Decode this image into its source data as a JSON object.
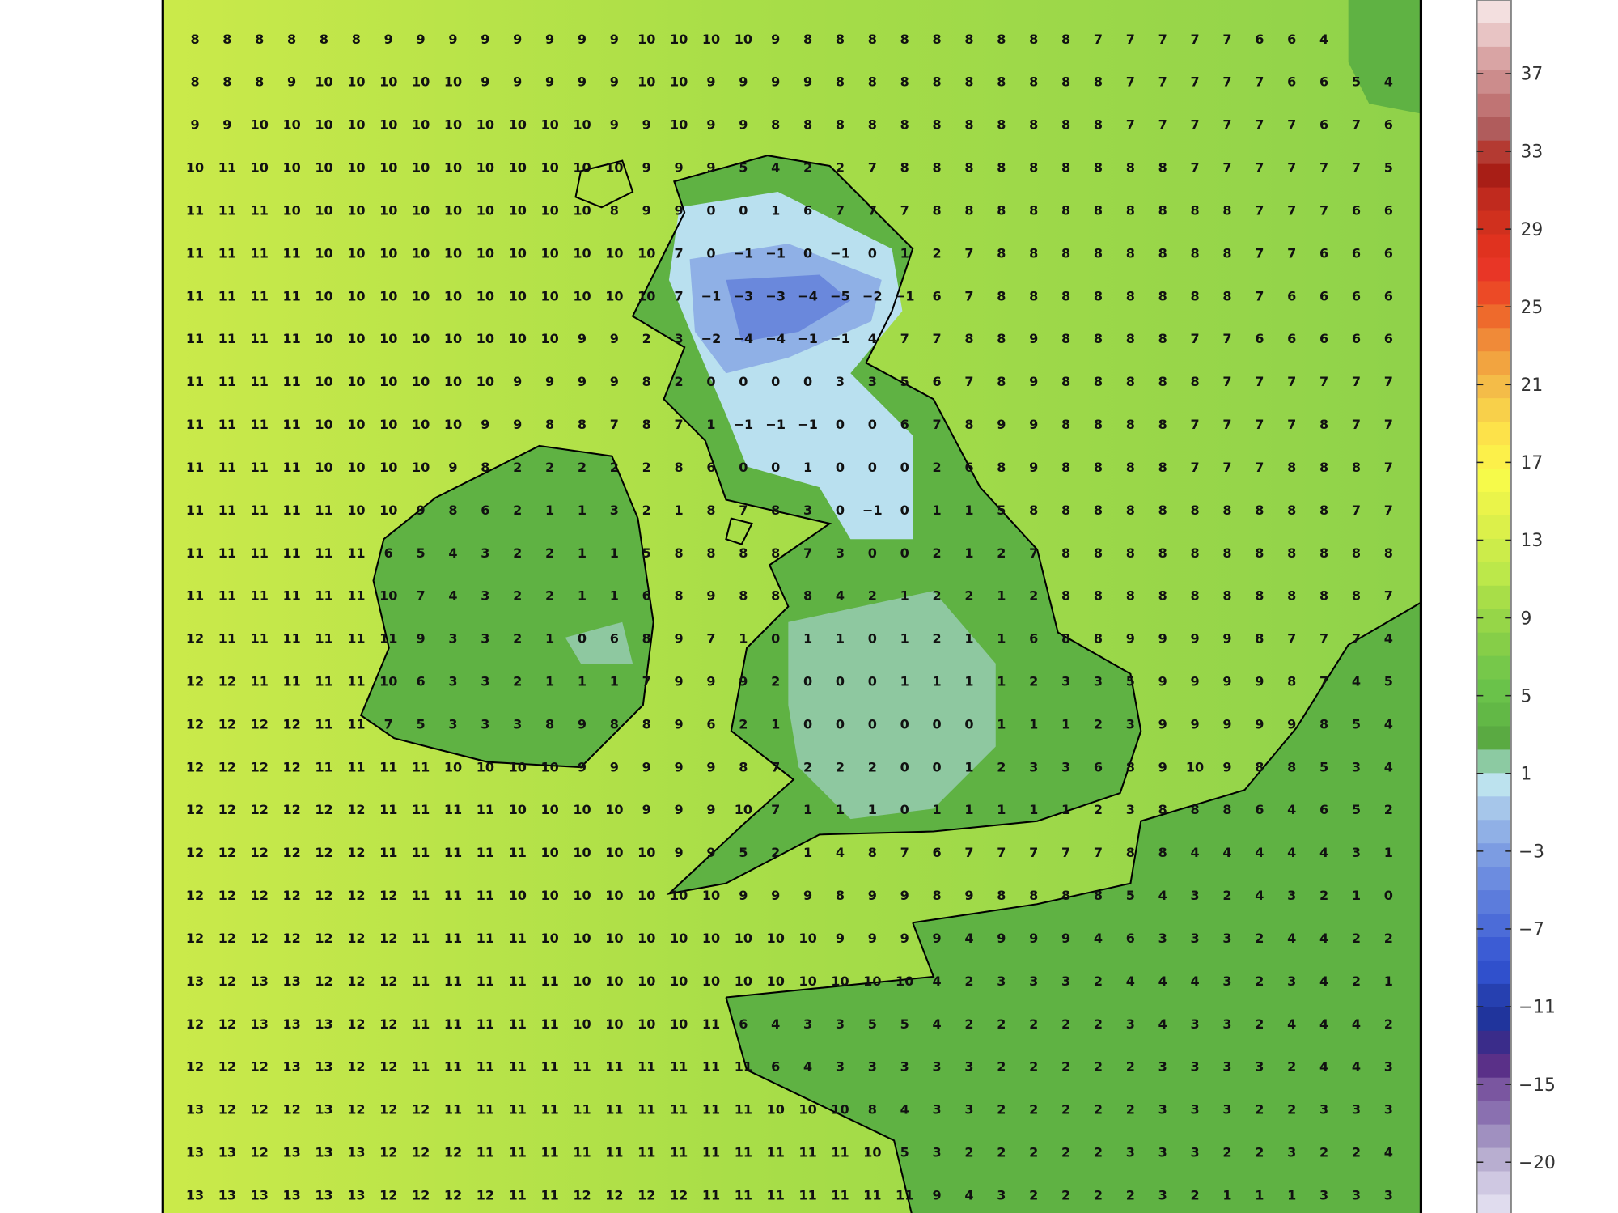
{
  "map": {
    "colors": {
      "sea_west": "#cbea4a",
      "sea_mid": "#a9de48",
      "sea_east": "#8fd24a",
      "land": "#5fb243",
      "land_light": "#74c24a",
      "cold_light": "#b9e0ef",
      "cold_mid": "#8fb0e6",
      "cold_core": "#6a88dc",
      "coast": "#000000",
      "frame": "#000000"
    },
    "grid_values": [
      [
        8,
        8,
        8,
        8,
        8,
        8,
        9,
        9,
        9,
        9,
        9,
        9,
        9,
        9,
        10,
        10,
        10,
        10,
        9,
        8,
        8,
        8,
        8,
        8,
        8,
        8,
        8,
        8,
        7,
        7,
        7,
        7,
        7,
        6,
        6,
        4
      ],
      [
        8,
        8,
        8,
        9,
        10,
        10,
        10,
        10,
        10,
        9,
        9,
        9,
        9,
        9,
        10,
        10,
        9,
        9,
        9,
        9,
        8,
        8,
        8,
        8,
        8,
        8,
        8,
        8,
        8,
        7,
        7,
        7,
        7,
        7,
        6,
        6,
        5,
        4
      ],
      [
        9,
        9,
        10,
        10,
        10,
        10,
        10,
        10,
        10,
        10,
        10,
        10,
        10,
        9,
        9,
        10,
        9,
        9,
        8,
        8,
        8,
        8,
        8,
        8,
        8,
        8,
        8,
        8,
        8,
        7,
        7,
        7,
        7,
        7,
        7,
        6,
        7,
        6
      ],
      [
        10,
        11,
        10,
        10,
        10,
        10,
        10,
        10,
        10,
        10,
        10,
        10,
        10,
        10,
        9,
        9,
        9,
        5,
        4,
        2,
        2,
        7,
        8,
        8,
        8,
        8,
        8,
        8,
        8,
        8,
        8,
        7,
        7,
        7,
        7,
        7,
        7,
        5
      ],
      [
        11,
        11,
        11,
        10,
        10,
        10,
        10,
        10,
        10,
        10,
        10,
        10,
        10,
        8,
        9,
        9,
        0,
        0,
        1,
        6,
        7,
        7,
        7,
        8,
        8,
        8,
        8,
        8,
        8,
        8,
        8,
        8,
        8,
        7,
        7,
        7,
        6,
        6
      ],
      [
        11,
        11,
        11,
        11,
        10,
        10,
        10,
        10,
        10,
        10,
        10,
        10,
        10,
        10,
        10,
        7,
        0,
        -1,
        -1,
        0,
        -1,
        0,
        1,
        2,
        7,
        8,
        8,
        8,
        8,
        8,
        8,
        8,
        8,
        7,
        7,
        6,
        6,
        6
      ],
      [
        11,
        11,
        11,
        11,
        10,
        10,
        10,
        10,
        10,
        10,
        10,
        10,
        10,
        10,
        10,
        7,
        -1,
        -3,
        -3,
        -4,
        -5,
        -2,
        -1,
        6,
        7,
        8,
        8,
        8,
        8,
        8,
        8,
        8,
        8,
        7,
        6,
        6,
        6,
        6
      ],
      [
        11,
        11,
        11,
        11,
        10,
        10,
        10,
        10,
        10,
        10,
        10,
        10,
        9,
        9,
        2,
        3,
        -2,
        -4,
        -4,
        -1,
        -1,
        4,
        7,
        7,
        8,
        8,
        9,
        8,
        8,
        8,
        8,
        7,
        7,
        6,
        6,
        6,
        6,
        6
      ],
      [
        11,
        11,
        11,
        11,
        10,
        10,
        10,
        10,
        10,
        10,
        9,
        9,
        9,
        9,
        8,
        2,
        0,
        0,
        0,
        0,
        3,
        3,
        5,
        6,
        7,
        8,
        9,
        8,
        8,
        8,
        8,
        8,
        7,
        7,
        7,
        7,
        7,
        7
      ],
      [
        11,
        11,
        11,
        11,
        10,
        10,
        10,
        10,
        10,
        9,
        9,
        8,
        8,
        7,
        8,
        7,
        1,
        -1,
        -1,
        -1,
        0,
        0,
        6,
        7,
        8,
        9,
        9,
        8,
        8,
        8,
        8,
        7,
        7,
        7,
        7,
        8,
        7,
        7
      ],
      [
        11,
        11,
        11,
        11,
        10,
        10,
        10,
        10,
        9,
        8,
        2,
        2,
        2,
        2,
        2,
        8,
        6,
        0,
        0,
        1,
        0,
        0,
        0,
        2,
        6,
        8,
        9,
        8,
        8,
        8,
        8,
        7,
        7,
        7,
        8,
        8,
        8,
        7
      ],
      [
        11,
        11,
        11,
        11,
        11,
        10,
        10,
        9,
        8,
        6,
        2,
        1,
        1,
        3,
        2,
        1,
        8,
        7,
        8,
        3,
        0,
        -1,
        0,
        1,
        1,
        5,
        8,
        8,
        8,
        8,
        8,
        8,
        8,
        8,
        8,
        8,
        7,
        7
      ],
      [
        11,
        11,
        11,
        11,
        11,
        11,
        6,
        5,
        4,
        3,
        2,
        2,
        1,
        1,
        5,
        8,
        8,
        8,
        8,
        7,
        3,
        0,
        0,
        2,
        1,
        2,
        7,
        8,
        8,
        8,
        8,
        8,
        8,
        8,
        8,
        8,
        8,
        8
      ],
      [
        11,
        11,
        11,
        11,
        11,
        11,
        10,
        7,
        4,
        3,
        2,
        2,
        1,
        1,
        6,
        8,
        9,
        8,
        8,
        8,
        4,
        2,
        1,
        2,
        2,
        1,
        2,
        8,
        8,
        8,
        8,
        8,
        8,
        8,
        8,
        8,
        8,
        7
      ],
      [
        12,
        11,
        11,
        11,
        11,
        11,
        11,
        9,
        3,
        3,
        2,
        1,
        0,
        6,
        8,
        9,
        7,
        1,
        0,
        1,
        1,
        0,
        1,
        2,
        1,
        1,
        6,
        8,
        8,
        9,
        9,
        9,
        9,
        8,
        7,
        7,
        7,
        4
      ],
      [
        12,
        12,
        11,
        11,
        11,
        11,
        10,
        6,
        3,
        3,
        2,
        1,
        1,
        1,
        7,
        9,
        9,
        9,
        2,
        0,
        0,
        0,
        1,
        1,
        1,
        1,
        2,
        3,
        3,
        5,
        9,
        9,
        9,
        9,
        8,
        7,
        4,
        5
      ],
      [
        12,
        12,
        12,
        12,
        11,
        11,
        7,
        5,
        3,
        3,
        3,
        8,
        9,
        8,
        8,
        9,
        6,
        2,
        1,
        0,
        0,
        0,
        0,
        0,
        0,
        1,
        1,
        1,
        2,
        3,
        9,
        9,
        9,
        9,
        9,
        8,
        5,
        4
      ],
      [
        12,
        12,
        12,
        12,
        11,
        11,
        11,
        11,
        10,
        10,
        10,
        10,
        9,
        9,
        9,
        9,
        9,
        8,
        7,
        2,
        2,
        2,
        0,
        0,
        1,
        2,
        3,
        3,
        6,
        8,
        9,
        10,
        9,
        8,
        8,
        5,
        3,
        4
      ],
      [
        12,
        12,
        12,
        12,
        12,
        12,
        11,
        11,
        11,
        11,
        10,
        10,
        10,
        10,
        9,
        9,
        9,
        10,
        7,
        1,
        1,
        1,
        0,
        1,
        1,
        1,
        1,
        1,
        2,
        3,
        8,
        8,
        8,
        6,
        4,
        6,
        5,
        2
      ],
      [
        12,
        12,
        12,
        12,
        12,
        12,
        11,
        11,
        11,
        11,
        11,
        10,
        10,
        10,
        10,
        9,
        9,
        5,
        2,
        1,
        4,
        8,
        7,
        6,
        7,
        7,
        7,
        7,
        7,
        8,
        8,
        4,
        4,
        4,
        4,
        4,
        3,
        1
      ],
      [
        12,
        12,
        12,
        12,
        12,
        12,
        12,
        11,
        11,
        11,
        10,
        10,
        10,
        10,
        10,
        10,
        10,
        9,
        9,
        9,
        8,
        9,
        9,
        8,
        9,
        8,
        8,
        8,
        8,
        5,
        4,
        3,
        2,
        4,
        3,
        2,
        1,
        0
      ],
      [
        12,
        12,
        12,
        12,
        12,
        12,
        12,
        11,
        11,
        11,
        11,
        10,
        10,
        10,
        10,
        10,
        10,
        10,
        10,
        10,
        9,
        9,
        9,
        9,
        4,
        9,
        9,
        9,
        4,
        6,
        3,
        3,
        3,
        2,
        4,
        4,
        2,
        2
      ],
      [
        13,
        12,
        13,
        13,
        12,
        12,
        12,
        11,
        11,
        11,
        11,
        11,
        10,
        10,
        10,
        10,
        10,
        10,
        10,
        10,
        10,
        10,
        10,
        4,
        2,
        3,
        3,
        3,
        2,
        4,
        4,
        4,
        3,
        2,
        3,
        4,
        2,
        1
      ],
      [
        12,
        12,
        13,
        13,
        13,
        12,
        12,
        11,
        11,
        11,
        11,
        11,
        10,
        10,
        10,
        10,
        11,
        6,
        4,
        3,
        3,
        5,
        5,
        4,
        2,
        2,
        2,
        2,
        2,
        3,
        4,
        3,
        3,
        2,
        4,
        4,
        4,
        2
      ],
      [
        12,
        12,
        12,
        13,
        13,
        12,
        12,
        11,
        11,
        11,
        11,
        11,
        11,
        11,
        11,
        11,
        11,
        11,
        6,
        4,
        3,
        3,
        3,
        3,
        3,
        2,
        2,
        2,
        2,
        2,
        3,
        3,
        3,
        3,
        2,
        4,
        4,
        3
      ],
      [
        13,
        12,
        12,
        12,
        13,
        12,
        12,
        12,
        11,
        11,
        11,
        11,
        11,
        11,
        11,
        11,
        11,
        11,
        10,
        10,
        10,
        8,
        4,
        3,
        3,
        2,
        2,
        2,
        2,
        2,
        3,
        3,
        3,
        2,
        2,
        3,
        3,
        3
      ],
      [
        13,
        13,
        12,
        13,
        13,
        13,
        12,
        12,
        12,
        11,
        11,
        11,
        11,
        11,
        11,
        11,
        11,
        11,
        11,
        11,
        11,
        10,
        5,
        3,
        2,
        2,
        2,
        2,
        2,
        3,
        3,
        3,
        2,
        2,
        3,
        2,
        2,
        4
      ],
      [
        13,
        13,
        13,
        13,
        13,
        13,
        12,
        12,
        12,
        12,
        11,
        11,
        12,
        12,
        12,
        12,
        11,
        11,
        11,
        11,
        11,
        11,
        11,
        9,
        4,
        3,
        2,
        2,
        2,
        2,
        3,
        2,
        1,
        1,
        1,
        3,
        3,
        3
      ]
    ]
  },
  "colorbar": {
    "tick_labels": [
      "37",
      "33",
      "29",
      "25",
      "21",
      "17",
      "13",
      "9",
      "5",
      "1",
      "−3",
      "−7",
      "−11",
      "−15",
      "−20"
    ],
    "bands_top_to_bottom": [
      "#f3dfdf",
      "#e8c4c4",
      "#d9a4a4",
      "#cc8c8c",
      "#c07474",
      "#b05c5c",
      "#b43a32",
      "#a81e16",
      "#c02a1e",
      "#d0301e",
      "#e0321f",
      "#e83626",
      "#ec4a26",
      "#ee6a2c",
      "#f08a38",
      "#f2a440",
      "#f4bc48",
      "#f8d04a",
      "#fde24a",
      "#fcf04a",
      "#f6fa4a",
      "#eaf44a",
      "#dcf04a",
      "#ccec4a",
      "#bce84a",
      "#a8de48",
      "#96d648",
      "#86ce48",
      "#76c84a",
      "#6ac24a",
      "#62b846",
      "#5aaa42",
      "#8ccaa2",
      "#bce2ee",
      "#a6c6ea",
      "#90b0e6",
      "#7c9ce2",
      "#6c8ce0",
      "#5c7cdc",
      "#4c6cd8",
      "#3c5cd4",
      "#3050cc",
      "#2640b0",
      "#20349c",
      "#3a2c8a",
      "#5a3088",
      "#7a56a0",
      "#8a70b0",
      "#a090c0",
      "#b8aed0",
      "#cfc8e2",
      "#e0dcee"
    ]
  }
}
